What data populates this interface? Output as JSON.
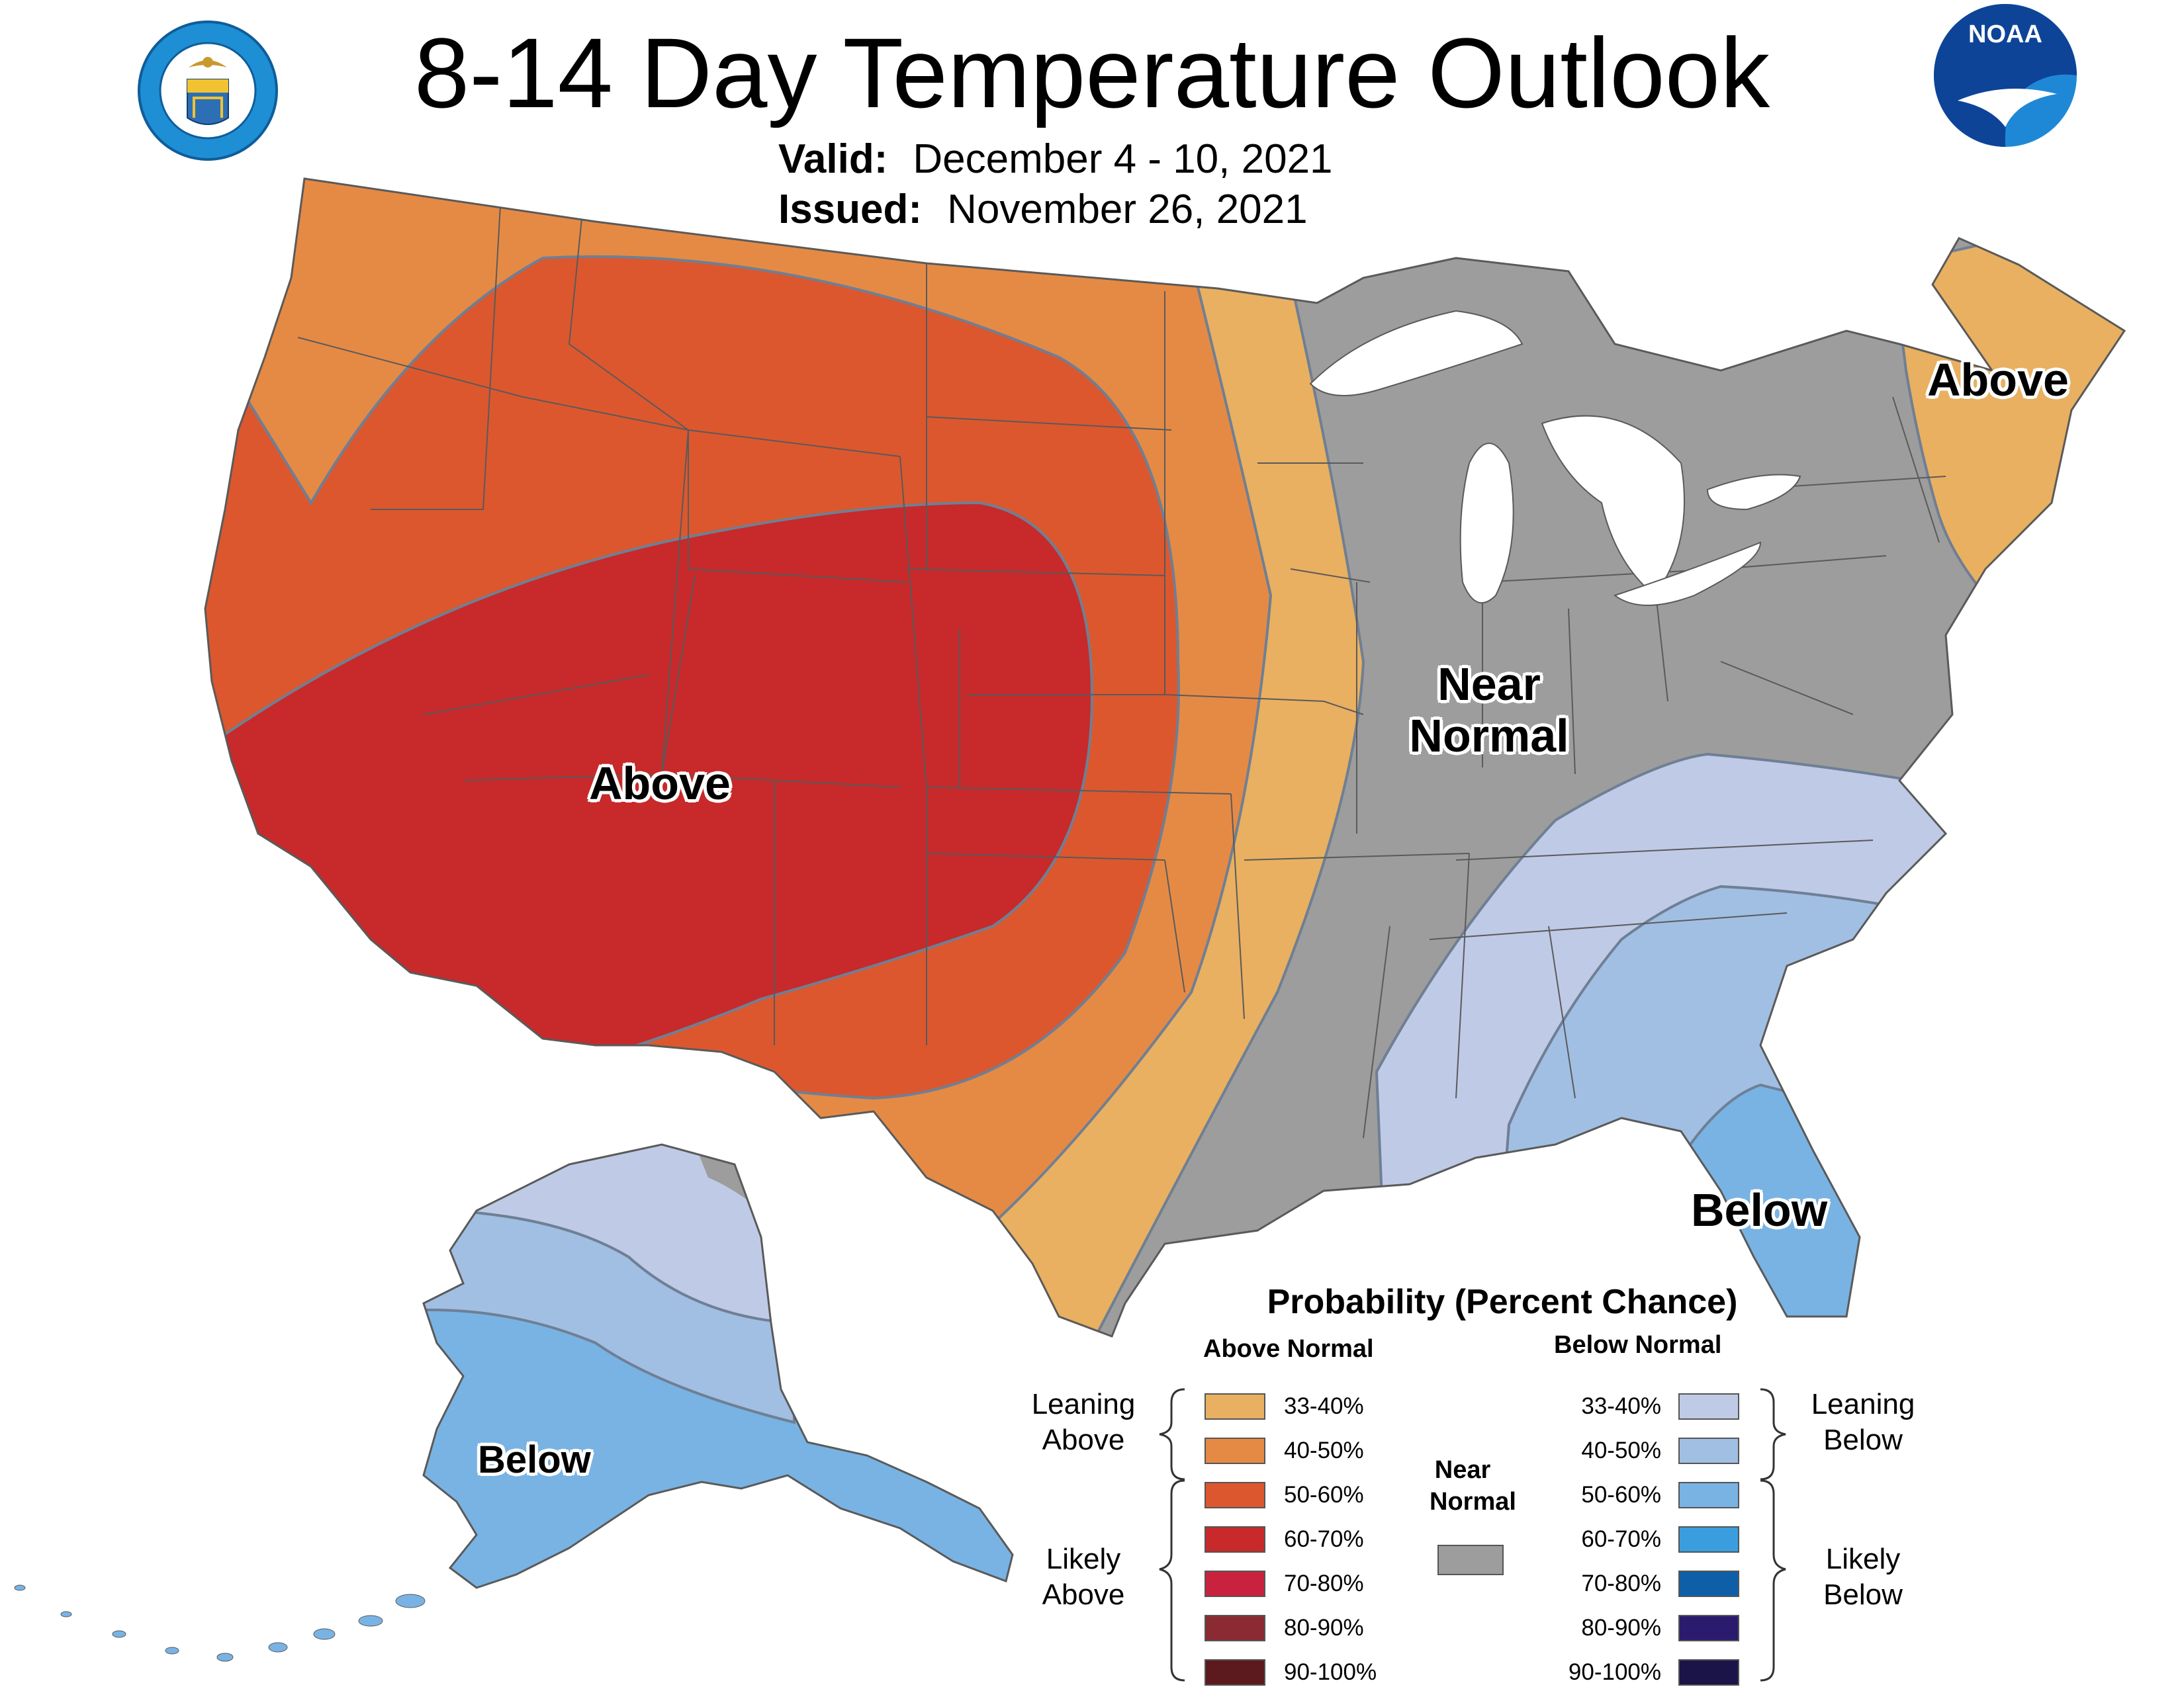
{
  "title": "8-14 Day Temperature Outlook",
  "valid": {
    "label": "Valid:",
    "value": "December 4 - 10, 2021"
  },
  "issued": {
    "label": "Issued:",
    "value": "November 26, 2021"
  },
  "logos": {
    "commerce": {
      "name": "doc-seal",
      "text": "DEPARTMENT OF COMMERCE · UNITED STATES OF AMERICA"
    },
    "noaa": {
      "name": "noaa-logo",
      "text": "NOAA"
    }
  },
  "map_labels": {
    "west_above": "Above",
    "northeast_above": "Above",
    "near_normal_line1": "Near",
    "near_normal_line2": "Normal",
    "florida_below": "Below",
    "alaska_below": "Below"
  },
  "colors": {
    "above": [
      "#e8b060",
      "#e58a45",
      "#dc572e",
      "#c8292a",
      "#c8223f",
      "#8b2a33",
      "#5c1a1e"
    ],
    "below": [
      "#bfcae6",
      "#a1bfe3",
      "#78b3e4",
      "#3a9ede",
      "#0f5fa8",
      "#2b1b6e",
      "#1a1449"
    ],
    "near_normal": "#9d9d9d",
    "border": "#5a5a5a",
    "lakes": "#ffffff"
  },
  "legend": {
    "title": "Probability (Percent Chance)",
    "above_header": "Above Normal",
    "below_header": "Below Normal",
    "above_ranges": [
      "33-40%",
      "40-50%",
      "50-60%",
      "60-70%",
      "70-80%",
      "80-90%",
      "90-100%"
    ],
    "below_ranges": [
      "33-40%",
      "40-50%",
      "50-60%",
      "60-70%",
      "70-80%",
      "80-90%",
      "90-100%"
    ],
    "leaning_above": [
      "Leaning",
      "Above"
    ],
    "likely_above": [
      "Likely",
      "Above"
    ],
    "leaning_below": [
      "Leaning",
      "Below"
    ],
    "likely_below": [
      "Likely",
      "Below"
    ],
    "near_normal": [
      "Near",
      "Normal"
    ]
  }
}
